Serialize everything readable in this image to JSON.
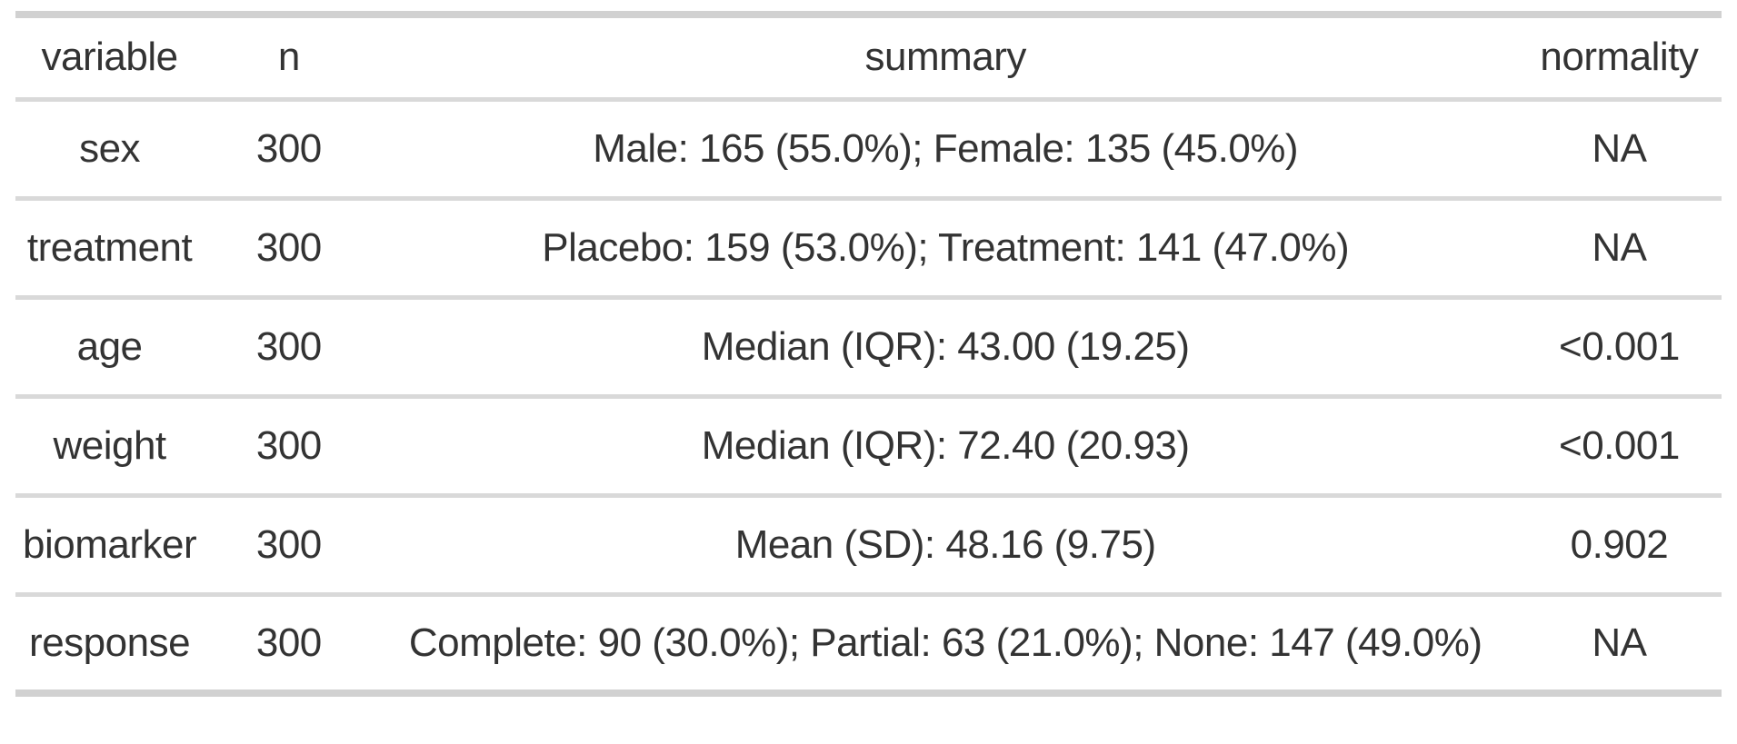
{
  "colors": {
    "background": "#ffffff",
    "text": "#333333",
    "border_heavy": "#d1d1d1",
    "border_light": "#d9d9d9"
  },
  "table": {
    "columns": [
      {
        "key": "variable",
        "label": "variable"
      },
      {
        "key": "n",
        "label": "n"
      },
      {
        "key": "summary",
        "label": "summary"
      },
      {
        "key": "normality",
        "label": "normality"
      }
    ],
    "rows": [
      {
        "variable": "sex",
        "n": "300",
        "summary": "Male: 165 (55.0%); Female: 135 (45.0%)",
        "normality": "NA"
      },
      {
        "variable": "treatment",
        "n": "300",
        "summary": "Placebo: 159 (53.0%); Treatment: 141 (47.0%)",
        "normality": "NA"
      },
      {
        "variable": "age",
        "n": "300",
        "summary": "Median (IQR): 43.00 (19.25)",
        "normality": "<0.001"
      },
      {
        "variable": "weight",
        "n": "300",
        "summary": "Median (IQR): 72.40 (20.93)",
        "normality": "<0.001"
      },
      {
        "variable": "biomarker",
        "n": "300",
        "summary": "Mean (SD): 48.16 (9.75)",
        "normality": "0.902"
      },
      {
        "variable": "response",
        "n": "300",
        "summary": "Complete: 90 (30.0%); Partial: 63 (21.0%); None: 147 (49.0%)",
        "normality": "NA"
      }
    ]
  },
  "chart_data": {
    "type": "table",
    "columns": [
      "variable",
      "n",
      "summary",
      "normality"
    ],
    "rows": [
      [
        "sex",
        300,
        "Male: 165 (55.0%); Female: 135 (45.0%)",
        "NA"
      ],
      [
        "treatment",
        300,
        "Placebo: 159 (53.0%); Treatment: 141 (47.0%)",
        "NA"
      ],
      [
        "age",
        300,
        "Median (IQR): 43.00 (19.25)",
        "<0.001"
      ],
      [
        "weight",
        300,
        "Median (IQR): 72.40 (20.93)",
        "<0.001"
      ],
      [
        "biomarker",
        300,
        "Mean (SD): 48.16 (9.75)",
        "0.902"
      ],
      [
        "response",
        300,
        "Complete: 90 (30.0%); Partial: 63 (21.0%); None: 147 (49.0%)",
        "NA"
      ]
    ]
  }
}
